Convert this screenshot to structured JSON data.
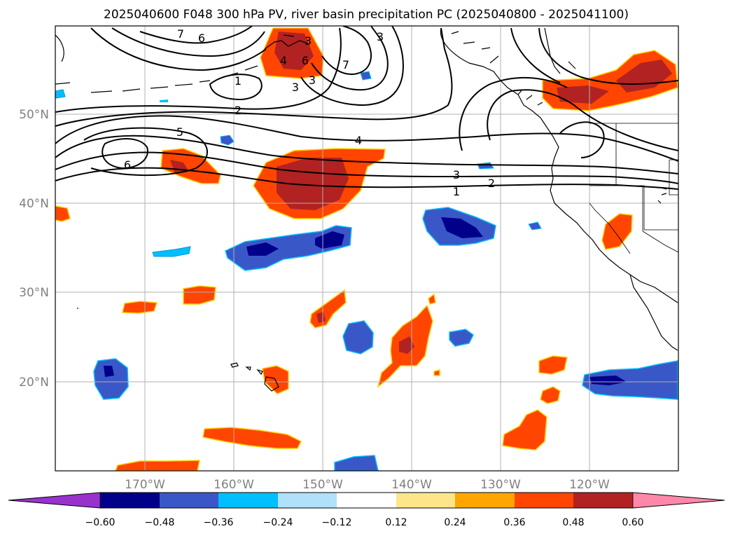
{
  "title": "2025040600 F048 300 hPa PV, river basin precipitation PC (2025040800 - 2025041100)",
  "lon_labels": [
    "170°W",
    "160°W",
    "150°W",
    "140°W",
    "130°W",
    "120°W"
  ],
  "lat_labels": [
    "50°N",
    "40°N",
    "30°N",
    "20°N"
  ],
  "contour_labels": [
    "7",
    "6",
    "1",
    "2",
    "5",
    "6",
    "4",
    "3",
    "2",
    "1",
    "3",
    "4",
    "6",
    "3",
    "3",
    "7",
    "3"
  ],
  "colorbar": {
    "ticks": [
      "−0.60",
      "−0.48",
      "−0.36",
      "−0.24",
      "−0.12",
      "0.12",
      "0.24",
      "0.36",
      "0.48",
      "0.60"
    ],
    "colors": [
      "#9932cc",
      "#00008b",
      "#3a57c8",
      "#00bfff",
      "#b0e0fa",
      "#ffffff",
      "#fde68a",
      "#ffa500",
      "#ff4500",
      "#b22222",
      "#ff88aa"
    ]
  }
}
